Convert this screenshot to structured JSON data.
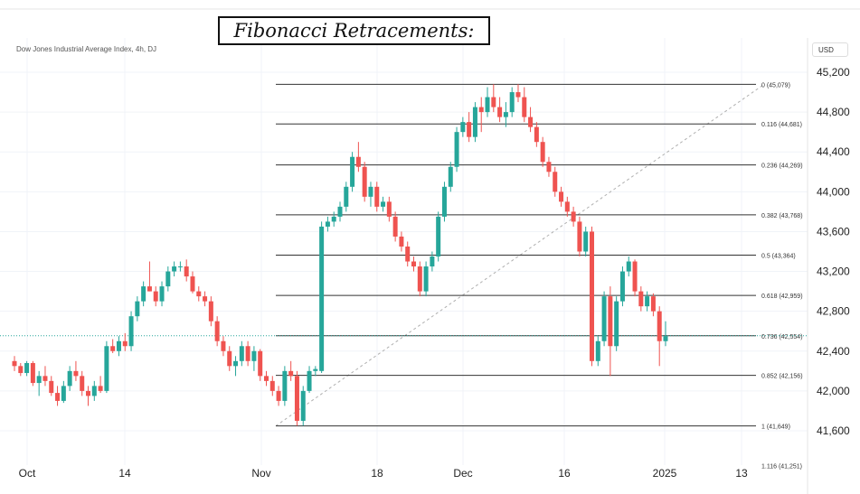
{
  "header": {
    "title": "Fibonacci Retracements:",
    "symbol": "Dow Jones Industrial Average Index, 4h, DJ",
    "currency": "USD"
  },
  "colors": {
    "up": "#26a69a",
    "down": "#ef5350",
    "fib_line": "#333333",
    "last_price_line": "#26a69a",
    "trend_line": "#b0b0b0"
  },
  "chart_data": {
    "type": "candlestick",
    "title": "Fibonacci Retracements:",
    "instrument": "Dow Jones Industrial Average Index, 4h, DJ",
    "ylim": [
      41300,
      45400
    ],
    "y_ticks": [
      41600,
      42000,
      42400,
      42800,
      43200,
      43600,
      44000,
      44400,
      44800,
      45200
    ],
    "y_tick_labels": [
      "41,600",
      "42,000",
      "42,400",
      "42,800",
      "43,200",
      "43,600",
      "44,000",
      "44,400",
      "44,800",
      "45,200"
    ],
    "x_labels": [
      "Oct",
      "14",
      "Nov",
      "18",
      "Dec",
      "16",
      "2025",
      "13"
    ],
    "fib_levels": [
      {
        "ratio": "0",
        "value": 45079,
        "label": "0 (45,079)"
      },
      {
        "ratio": "0.116",
        "value": 44681,
        "label": "0.116 (44,681)"
      },
      {
        "ratio": "0.236",
        "value": 44269,
        "label": "0.236 (44,269)"
      },
      {
        "ratio": "0.382",
        "value": 43768,
        "label": "0.382 (43,768)"
      },
      {
        "ratio": "0.5",
        "value": 43364,
        "label": "0.5 (43,364)"
      },
      {
        "ratio": "0.618",
        "value": 42959,
        "label": "0.618 (42,959)"
      },
      {
        "ratio": "0.736",
        "value": 42554,
        "label": "0.736 (42,554)"
      },
      {
        "ratio": "0.852",
        "value": 42156,
        "label": "0.852 (42,156)"
      },
      {
        "ratio": "1",
        "value": 41649,
        "label": "1 (41,649)"
      },
      {
        "ratio": "1.116",
        "value": 41251,
        "label": "1.116 (41,251)"
      }
    ],
    "last_price": 42554,
    "candles": [
      [
        42300,
        42350,
        42200,
        42250
      ],
      [
        42250,
        42280,
        42150,
        42180
      ],
      [
        42180,
        42300,
        42150,
        42280
      ],
      [
        42280,
        42300,
        42050,
        42080
      ],
      [
        42080,
        42200,
        41950,
        42150
      ],
      [
        42150,
        42250,
        42050,
        42100
      ],
      [
        42100,
        42150,
        41950,
        41980
      ],
      [
        41980,
        42050,
        41850,
        41900
      ],
      [
        41900,
        42100,
        41880,
        42050
      ],
      [
        42050,
        42250,
        42000,
        42200
      ],
      [
        42200,
        42300,
        42100,
        42150
      ],
      [
        42150,
        42200,
        41950,
        42000
      ],
      [
        42000,
        42050,
        41850,
        41950
      ],
      [
        41950,
        42100,
        41900,
        42050
      ],
      [
        42050,
        42150,
        41980,
        42000
      ],
      [
        42000,
        42500,
        41980,
        42450
      ],
      [
        42450,
        42520,
        42380,
        42400
      ],
      [
        42400,
        42550,
        42350,
        42500
      ],
      [
        42500,
        42580,
        42400,
        42450
      ],
      [
        42450,
        42800,
        42400,
        42750
      ],
      [
        42750,
        42950,
        42700,
        42900
      ],
      [
        42900,
        43100,
        42850,
        43050
      ],
      [
        43050,
        43300,
        43000,
        43000
      ],
      [
        43000,
        43050,
        42850,
        42900
      ],
      [
        42900,
        43100,
        42850,
        43050
      ],
      [
        43050,
        43250,
        43000,
        43200
      ],
      [
        43200,
        43300,
        43150,
        43250
      ],
      [
        43250,
        43300,
        43200,
        43250
      ],
      [
        43250,
        43320,
        43100,
        43150
      ],
      [
        43150,
        43200,
        42980,
        43000
      ],
      [
        43000,
        43050,
        42900,
        42950
      ],
      [
        42950,
        43000,
        42850,
        42900
      ],
      [
        42900,
        42950,
        42650,
        42700
      ],
      [
        42700,
        42750,
        42450,
        42500
      ],
      [
        42500,
        42550,
        42350,
        42400
      ],
      [
        42400,
        42450,
        42200,
        42250
      ],
      [
        42250,
        42350,
        42150,
        42300
      ],
      [
        42300,
        42500,
        42250,
        42450
      ],
      [
        42450,
        42500,
        42250,
        42300
      ],
      [
        42300,
        42450,
        42200,
        42400
      ],
      [
        42400,
        42420,
        42100,
        42150
      ],
      [
        42150,
        42200,
        42050,
        42100
      ],
      [
        42100,
        42150,
        41950,
        42000
      ],
      [
        42000,
        42050,
        41850,
        41900
      ],
      [
        41900,
        42250,
        41850,
        42200
      ],
      [
        42200,
        42300,
        42100,
        42150
      ],
      [
        42150,
        42200,
        41650,
        41700
      ],
      [
        41700,
        42050,
        41650,
        42000
      ],
      [
        42000,
        42250,
        41980,
        42200
      ],
      [
        42200,
        42250,
        42150,
        42220
      ],
      [
        42200,
        43700,
        42180,
        43650
      ],
      [
        43650,
        43750,
        43600,
        43700
      ],
      [
        43700,
        43800,
        43650,
        43750
      ],
      [
        43750,
        43900,
        43700,
        43850
      ],
      [
        43850,
        44100,
        43800,
        44050
      ],
      [
        44050,
        44400,
        44000,
        44350
      ],
      [
        44350,
        44500,
        44200,
        44250
      ],
      [
        44250,
        44300,
        43900,
        43950
      ],
      [
        43950,
        44100,
        43850,
        44050
      ],
      [
        44050,
        44100,
        43800,
        43850
      ],
      [
        43850,
        43950,
        43800,
        43900
      ],
      [
        43900,
        43950,
        43700,
        43750
      ],
      [
        43750,
        43800,
        43500,
        43550
      ],
      [
        43550,
        43600,
        43400,
        43450
      ],
      [
        43450,
        43500,
        43250,
        43300
      ],
      [
        43300,
        43350,
        43200,
        43250
      ],
      [
        43250,
        43300,
        42950,
        43000
      ],
      [
        43000,
        43300,
        42950,
        43250
      ],
      [
        43250,
        43400,
        43200,
        43350
      ],
      [
        43350,
        43800,
        43300,
        43750
      ],
      [
        43750,
        44100,
        43700,
        44050
      ],
      [
        44050,
        44300,
        44000,
        44250
      ],
      [
        44250,
        44650,
        44200,
        44600
      ],
      [
        44600,
        44750,
        44550,
        44700
      ],
      [
        44700,
        44800,
        44500,
        44550
      ],
      [
        44550,
        44900,
        44500,
        44850
      ],
      [
        44850,
        44950,
        44600,
        44800
      ],
      [
        44800,
        45050,
        44750,
        44950
      ],
      [
        44950,
        45080,
        44800,
        44850
      ],
      [
        44850,
        44950,
        44700,
        44750
      ],
      [
        44750,
        44900,
        44650,
        44800
      ],
      [
        44800,
        45050,
        44750,
        45000
      ],
      [
        45000,
        45080,
        44900,
        44950
      ],
      [
        44950,
        45050,
        44700,
        44750
      ],
      [
        44750,
        44850,
        44600,
        44650
      ],
      [
        44650,
        44700,
        44450,
        44500
      ],
      [
        44500,
        44550,
        44250,
        44300
      ],
      [
        44300,
        44350,
        44150,
        44200
      ],
      [
        44200,
        44250,
        43950,
        44000
      ],
      [
        44000,
        44050,
        43850,
        43900
      ],
      [
        43900,
        43950,
        43750,
        43800
      ],
      [
        43800,
        43850,
        43650,
        43700
      ],
      [
        43700,
        43750,
        43350,
        43400
      ],
      [
        43400,
        43650,
        43350,
        43600
      ],
      [
        43600,
        43650,
        42250,
        42300
      ],
      [
        42300,
        42550,
        42250,
        42500
      ],
      [
        42500,
        43000,
        42450,
        42950
      ],
      [
        42950,
        43050,
        42150,
        42450
      ],
      [
        42450,
        42950,
        42400,
        42900
      ],
      [
        42900,
        43250,
        42850,
        43200
      ],
      [
        43200,
        43350,
        43150,
        43300
      ],
      [
        43300,
        43320,
        42950,
        43000
      ],
      [
        43000,
        43050,
        42800,
        42850
      ],
      [
        42850,
        43000,
        42800,
        42950
      ],
      [
        42950,
        42980,
        42750,
        42800
      ],
      [
        42800,
        42850,
        42250,
        42500
      ],
      [
        42500,
        42700,
        42450,
        42550
      ]
    ]
  }
}
